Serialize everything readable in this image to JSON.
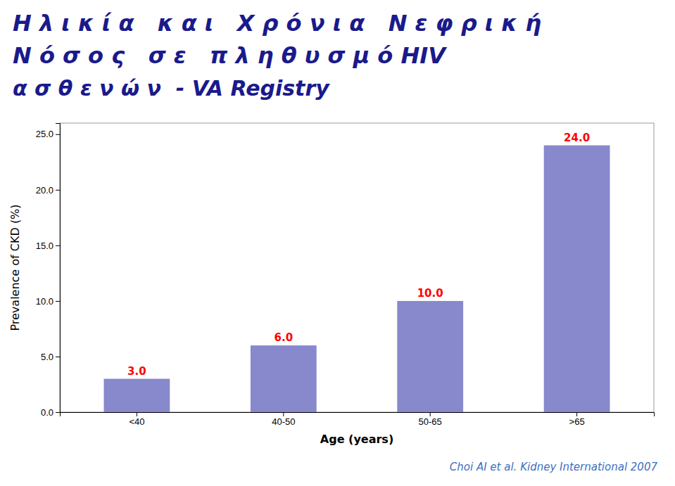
{
  "chart_data": {
    "type": "bar",
    "title": [
      "Η λ ι κ ί α   κ α ι   Χ ρ ό ν ι α   Ν ε φ ρ ι κ ή",
      "Ν ό σ ο ς   σ ε   π λ η θ υ σ μ ό HIV",
      "α σ θ ε ν ώ ν  - VA Registry"
    ],
    "annotations": [
      "Choi AI et al. Kidney International 2007"
    ],
    "x_label": "Age (years)",
    "y_label": "Prevalence of CKD (%)",
    "categories": [
      "<40",
      "40-50",
      "50-65",
      ">65"
    ],
    "values": [
      3.0,
      6.0,
      10.0,
      24.0
    ],
    "value_labels": [
      "3.0",
      "6.0",
      "10.0",
      "24.0"
    ],
    "data_labels": true,
    "color": "#8888cc",
    "ylim": [
      0,
      26
    ],
    "yticks": [
      {
        "value": 0.0,
        "label": "0.0"
      },
      {
        "value": 5.0,
        "label": "5.0"
      },
      {
        "value": 10.0,
        "label": "10.0"
      },
      {
        "value": 15.0,
        "label": "15.0"
      },
      {
        "value": 20.0,
        "label": "20.0"
      },
      {
        "value": 25.0,
        "label": "25.0"
      }
    ],
    "grid": false
  }
}
